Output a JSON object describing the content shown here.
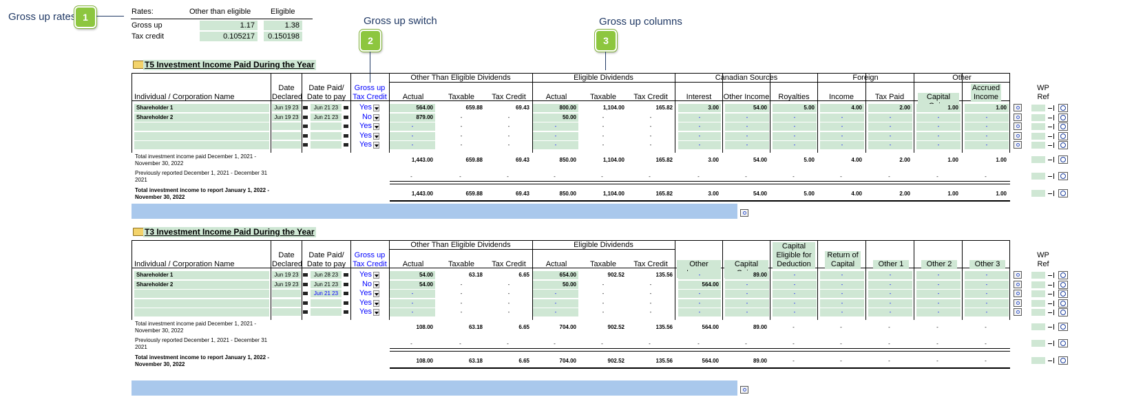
{
  "callouts": {
    "c1": {
      "title": "Gross up rates",
      "num": "1"
    },
    "c2": {
      "title": "Gross up switch",
      "num": "2"
    },
    "c3": {
      "title": "Gross up columns",
      "num": "3"
    }
  },
  "rates": {
    "label": "Rates:",
    "col_other": "Other than eligible",
    "col_eligible": "Eligible",
    "gross_up_label": "Gross up",
    "gross_up_other": "1.17",
    "gross_up_eligible": "1.38",
    "tax_credit_label": "Tax credit",
    "tax_credit_other": "0.105217",
    "tax_credit_eligible": "0.150198"
  },
  "t5": {
    "title": "T5 Investment Income Paid During the Year",
    "headers": {
      "name": "Individual / Corporation Name",
      "date_declared_1": "Date",
      "date_declared_2": "Declared",
      "date_paid_1": "Date Paid/",
      "date_paid_2": "Date to pay",
      "gross_up_1": "Gross up",
      "gross_up_2": "Tax Credit",
      "grp_other": "Other Than Eligible Dividends",
      "grp_eligible": "Eligible Dividends",
      "grp_canadian": "Canadian Sources",
      "grp_foreign": "Foreign",
      "grp_other2": "Other",
      "actual": "Actual",
      "taxable": "Taxable",
      "tax_credit": "Tax Credit",
      "interest": "Interest",
      "other_income": "Other Income",
      "royalties": "Royalties",
      "income": "Income",
      "tax_paid": "Tax Paid",
      "capital_gains": "Capital Gains",
      "accrued_1": "Accrued",
      "accrued_2": "Income",
      "wp_1": "WP",
      "wp_2": "Ref"
    },
    "rows": [
      {
        "name": "Shareholder 1",
        "declared": "Jun 19 23",
        "paid": "Jun 21 23",
        "gross": "Yes",
        "v": [
          "564.00",
          "659.88",
          "69.43",
          "800.00",
          "1,104.00",
          "165.82",
          "3.00",
          "54.00",
          "5.00",
          "4.00",
          "2.00",
          "1.00",
          "1.00"
        ]
      },
      {
        "name": "Shareholder 2",
        "declared": "Jun 19 23",
        "paid": "Jun 21 23",
        "gross": "No",
        "v": [
          "879.00",
          "-",
          "-",
          "50.00",
          "-",
          "-",
          "-",
          "-",
          "-",
          "-",
          "-",
          "-",
          "-"
        ]
      },
      {
        "name": "",
        "declared": "",
        "paid": "",
        "gross": "Yes",
        "v": [
          "-",
          "-",
          "-",
          "-",
          "-",
          "-",
          "-",
          "-",
          "-",
          "-",
          "-",
          "-",
          "-"
        ]
      },
      {
        "name": "",
        "declared": "",
        "paid": "",
        "gross": "Yes",
        "v": [
          "-",
          "-",
          "-",
          "-",
          "-",
          "-",
          "-",
          "-",
          "-",
          "-",
          "-",
          "-",
          "-"
        ]
      },
      {
        "name": "",
        "declared": "",
        "paid": "",
        "gross": "Yes",
        "v": [
          "-",
          "-",
          "-",
          "-",
          "-",
          "-",
          "-",
          "-",
          "-",
          "-",
          "-",
          "-",
          "-"
        ]
      }
    ],
    "summary": [
      {
        "label_1": "Total investment income paid December 1, 2021 -",
        "label_2": "November 30, 2022",
        "bold": false,
        "v": [
          "1,443.00",
          "659.88",
          "69.43",
          "850.00",
          "1,104.00",
          "165.82",
          "3.00",
          "54.00",
          "5.00",
          "4.00",
          "2.00",
          "1.00",
          "1.00"
        ]
      },
      {
        "label_1": "Previously reported December 1, 2021 - December 31",
        "label_2": "2021",
        "bold": false,
        "v": [
          "-",
          "-",
          "-",
          "-",
          "-",
          "-",
          "-",
          "-",
          "-",
          "-",
          "-",
          "-",
          "-"
        ]
      },
      {
        "label_1": "Total investment income to report January 1, 2022 -",
        "label_2": "November 30, 2022",
        "bold": true,
        "v": [
          "1,443.00",
          "659.88",
          "69.43",
          "850.00",
          "1,104.00",
          "165.82",
          "3.00",
          "54.00",
          "5.00",
          "4.00",
          "2.00",
          "1.00",
          "1.00"
        ]
      }
    ]
  },
  "t3": {
    "title": "T3 Investment Income Paid During the Year",
    "headers": {
      "name": "Individual / Corporation Name",
      "date_declared_1": "Date",
      "date_declared_2": "Declared",
      "date_paid_1": "Date Paid/",
      "date_paid_2": "Date to pay",
      "gross_up_1": "Gross up",
      "gross_up_2": "Tax Credit",
      "grp_other": "Other Than Eligible Dividends",
      "grp_eligible": "Eligible Dividends",
      "actual": "Actual",
      "taxable": "Taxable",
      "tax_credit": "Tax Credit",
      "other_income": "Other Income",
      "capital_gains": "Capital Gains",
      "cg_elig_1": "Capital Gains",
      "cg_elig_2": "Eligible for",
      "cg_elig_3": "Deduction",
      "roc_1": "Return of",
      "roc_2": "Capital",
      "other1": "Other 1",
      "other2": "Other 2",
      "other3": "Other 3",
      "wp_1": "WP",
      "wp_2": "Ref"
    },
    "rows": [
      {
        "name": "Shareholder 1",
        "declared": "Jun 19 23",
        "paid": "Jun 28 23",
        "gross": "Yes",
        "v": [
          "54.00",
          "63.18",
          "6.65",
          "654.00",
          "902.52",
          "135.56",
          "-",
          "89.00",
          "-",
          "-",
          "-",
          "-",
          "-"
        ]
      },
      {
        "name": "Shareholder 2",
        "declared": "Jun 19 23",
        "paid": "Jun 21 23",
        "gross": "No",
        "v": [
          "54.00",
          "-",
          "-",
          "50.00",
          "-",
          "-",
          "564.00",
          "-",
          "-",
          "-",
          "-",
          "-",
          "-"
        ]
      },
      {
        "name": "",
        "declared": "",
        "paid": "Jun 21 23",
        "gross": "Yes",
        "v": [
          "-",
          "-",
          "-",
          "-",
          "-",
          "-",
          "-",
          "-",
          "-",
          "-",
          "-",
          "-",
          "-"
        ]
      },
      {
        "name": "",
        "declared": "",
        "paid": "",
        "gross": "Yes",
        "v": [
          "-",
          "-",
          "-",
          "-",
          "-",
          "-",
          "-",
          "-",
          "-",
          "-",
          "-",
          "-",
          "-"
        ]
      },
      {
        "name": "",
        "declared": "",
        "paid": "",
        "gross": "Yes",
        "v": [
          "-",
          "-",
          "-",
          "-",
          "-",
          "-",
          "-",
          "-",
          "-",
          "-",
          "-",
          "-",
          "-"
        ]
      }
    ],
    "summary": [
      {
        "label_1": "Total investment income paid December 1, 2021 -",
        "label_2": "November 30, 2022",
        "bold": false,
        "v": [
          "108.00",
          "63.18",
          "6.65",
          "704.00",
          "902.52",
          "135.56",
          "564.00",
          "89.00",
          "-",
          "-",
          "-",
          "-",
          "-"
        ]
      },
      {
        "label_1": "Previously reported December 1, 2021 - December 31",
        "label_2": "2021",
        "bold": false,
        "v": [
          "-",
          "-",
          "-",
          "-",
          "-",
          "-",
          "-",
          "-",
          "-",
          "-",
          "-",
          "-",
          "-"
        ]
      },
      {
        "label_1": "Total investment income to report January 1, 2022 -",
        "label_2": "November 30, 2022",
        "bold": true,
        "v": [
          "108.00",
          "63.18",
          "6.65",
          "704.00",
          "902.52",
          "135.56",
          "564.00",
          "89.00",
          "-",
          "-",
          "-",
          "-",
          "-"
        ]
      }
    ]
  },
  "colors": {
    "accent_green": "#8dc63f",
    "cell_green": "#cfe7d4",
    "bar_blue": "#a9c8ec",
    "link_blue": "#0000ff",
    "callout_text": "#1f3864"
  }
}
